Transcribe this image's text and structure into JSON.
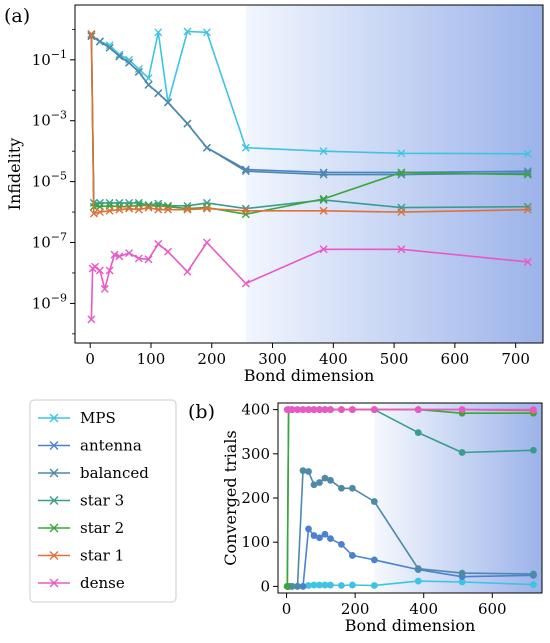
{
  "colors": {
    "MPS": "#3fc3e2",
    "antenna": "#4a82d0",
    "balanced": "#4d8aa8",
    "star 3": "#3a9c8e",
    "star 2": "#3aa63a",
    "star 1": "#e0703a",
    "dense": "#e858c8",
    "shade_dark": "#9cb3ea"
  },
  "legend": {
    "entries": [
      "MPS",
      "antenna",
      "balanced",
      "star 3",
      "star 2",
      "star 1",
      "dense"
    ]
  },
  "chart_data": [
    {
      "panel_label": "(a)",
      "type": "line",
      "xlabel": "Bond dimension",
      "ylabel": "Infidelity",
      "xlim": [
        -25,
        745
      ],
      "ylim_log10": [
        -10.3,
        0.8
      ],
      "yscale": "log",
      "x_ticks": [
        0,
        100,
        200,
        300,
        400,
        500,
        600,
        700
      ],
      "y_ticks_log10": [
        -9,
        -7,
        -5,
        -3,
        -1
      ],
      "y_tick_labels": [
        "10−9",
        "10−7",
        "10−5",
        "10−3",
        "10−1"
      ],
      "shaded_from_x": 256,
      "marker": "x",
      "series": [
        {
          "name": "MPS",
          "x": [
            2,
            16,
            32,
            48,
            64,
            80,
            96,
            112,
            128,
            160,
            192,
            256,
            384,
            512,
            720
          ],
          "y": [
            0.6,
            0.4,
            0.3,
            0.15,
            0.1,
            0.05,
            0.025,
            0.8,
            0.004,
            0.85,
            0.8,
            0.00013,
            0.0001,
            8.5e-05,
            8.2e-05
          ]
        },
        {
          "name": "antenna",
          "x": [
            2,
            16,
            32,
            48,
            64,
            80,
            96,
            112,
            128,
            160,
            192,
            256,
            384,
            512,
            720
          ],
          "y": [
            0.6,
            0.4,
            0.25,
            0.13,
            0.08,
            0.04,
            0.015,
            0.008,
            0.004,
            0.0008,
            0.00013,
            2.5e-05,
            2e-05,
            2e-05,
            2.2e-05
          ]
        },
        {
          "name": "balanced",
          "x": [
            2,
            16,
            32,
            48,
            64,
            80,
            96,
            112,
            128,
            160,
            192,
            256,
            384,
            512,
            720
          ],
          "y": [
            0.6,
            0.4,
            0.25,
            0.13,
            0.08,
            0.04,
            0.015,
            0.008,
            0.004,
            0.0008,
            0.00013,
            2.2e-05,
            1.7e-05,
            1.7e-05,
            1.9e-05
          ]
        },
        {
          "name": "star 3",
          "x": [
            2,
            6,
            16,
            32,
            48,
            64,
            80,
            96,
            112,
            128,
            160,
            192,
            256,
            384,
            512,
            720
          ],
          "y": [
            0.7,
            2e-06,
            2e-06,
            2e-06,
            2e-06,
            2e-06,
            2e-06,
            1.7e-06,
            1.9e-06,
            1.6e-06,
            1.6e-06,
            2e-06,
            1.3e-06,
            2.5e-06,
            1.4e-06,
            1.5e-06
          ]
        },
        {
          "name": "star 2",
          "x": [
            2,
            6,
            16,
            32,
            48,
            64,
            80,
            96,
            112,
            128,
            160,
            192,
            256,
            384,
            512,
            720
          ],
          "y": [
            0.7,
            1.5e-06,
            1.5e-06,
            1.6e-06,
            1.5e-06,
            1.5e-06,
            1.7e-06,
            1.6e-06,
            1.6e-06,
            1.5e-06,
            1.3e-06,
            1.4e-06,
            8.5e-07,
            2.7e-06,
            2e-05,
            1.7e-05
          ]
        },
        {
          "name": "star 1",
          "x": [
            2,
            6,
            16,
            32,
            48,
            64,
            80,
            96,
            112,
            128,
            160,
            192,
            256,
            384,
            512,
            720
          ],
          "y": [
            0.7,
            9e-07,
            1e-06,
            1.1e-06,
            1.2e-06,
            1.3e-06,
            1.2e-06,
            1.4e-06,
            1.2e-06,
            1.2e-06,
            1.2e-06,
            1.3e-06,
            1.1e-06,
            1.1e-06,
            1e-06,
            1.2e-06
          ]
        },
        {
          "name": "dense",
          "x": [
            2,
            4,
            8,
            16,
            24,
            32,
            40,
            48,
            64,
            80,
            96,
            112,
            128,
            160,
            192,
            256,
            384,
            512,
            720
          ],
          "y": [
            3e-10,
            1.4e-08,
            1.6e-08,
            1.2e-08,
            3e-09,
            1.2e-08,
            4e-08,
            3.5e-08,
            4.5e-08,
            3e-08,
            2.8e-08,
            9e-08,
            5e-08,
            1.1e-08,
            1e-07,
            4.5e-09,
            6e-08,
            6e-08,
            2.3e-08
          ]
        }
      ]
    },
    {
      "panel_label": "(b)",
      "type": "line",
      "xlabel": "Bond dimension",
      "ylabel": "Converged trials",
      "xlim": [
        -25,
        745
      ],
      "ylim": [
        -15,
        415
      ],
      "x_ticks": [
        0,
        200,
        400,
        600
      ],
      "y_ticks": [
        0,
        100,
        200,
        300,
        400
      ],
      "shaded_from_x": 256,
      "marker": "o",
      "series": [
        {
          "name": "MPS",
          "x": [
            2,
            6,
            16,
            32,
            48,
            64,
            80,
            96,
            112,
            128,
            160,
            192,
            256,
            384,
            512,
            720
          ],
          "y": [
            0,
            0,
            0,
            0,
            0,
            2,
            3,
            3,
            3,
            3,
            2,
            3,
            2,
            12,
            10,
            4
          ]
        },
        {
          "name": "antenna",
          "x": [
            2,
            6,
            16,
            32,
            48,
            64,
            80,
            96,
            112,
            128,
            160,
            192,
            256,
            384,
            512,
            720
          ],
          "y": [
            0,
            0,
            0,
            0,
            0,
            130,
            115,
            110,
            118,
            108,
            95,
            70,
            60,
            38,
            22,
            25
          ]
        },
        {
          "name": "balanced",
          "x": [
            2,
            6,
            16,
            32,
            48,
            64,
            80,
            96,
            112,
            128,
            160,
            192,
            256,
            384,
            512,
            720
          ],
          "y": [
            0,
            0,
            0,
            0,
            262,
            260,
            230,
            235,
            245,
            240,
            222,
            222,
            192,
            40,
            30,
            28
          ]
        },
        {
          "name": "star 3",
          "x": [
            2,
            6,
            16,
            32,
            48,
            64,
            80,
            96,
            112,
            128,
            160,
            192,
            256,
            384,
            512,
            720
          ],
          "y": [
            0,
            400,
            400,
            400,
            400,
            400,
            400,
            400,
            400,
            400,
            400,
            400,
            400,
            348,
            303,
            308
          ]
        },
        {
          "name": "star 2",
          "x": [
            2,
            6,
            16,
            32,
            48,
            64,
            80,
            96,
            112,
            128,
            160,
            192,
            256,
            384,
            512,
            720
          ],
          "y": [
            0,
            400,
            400,
            400,
            400,
            400,
            400,
            400,
            400,
            400,
            400,
            400,
            400,
            400,
            392,
            392
          ]
        },
        {
          "name": "star 1",
          "x": [
            2,
            6,
            16,
            32,
            48,
            64,
            80,
            96,
            112,
            128,
            160,
            192,
            256,
            384,
            512,
            720
          ],
          "y": [
            400,
            400,
            400,
            400,
            400,
            400,
            400,
            400,
            400,
            400,
            400,
            400,
            400,
            400,
            400,
            398
          ]
        },
        {
          "name": "dense",
          "x": [
            2,
            6,
            16,
            32,
            48,
            64,
            80,
            96,
            112,
            128,
            160,
            192,
            256,
            384,
            512,
            720
          ],
          "y": [
            400,
            400,
            400,
            400,
            400,
            400,
            400,
            400,
            400,
            400,
            400,
            400,
            400,
            400,
            400,
            400
          ]
        }
      ]
    }
  ]
}
